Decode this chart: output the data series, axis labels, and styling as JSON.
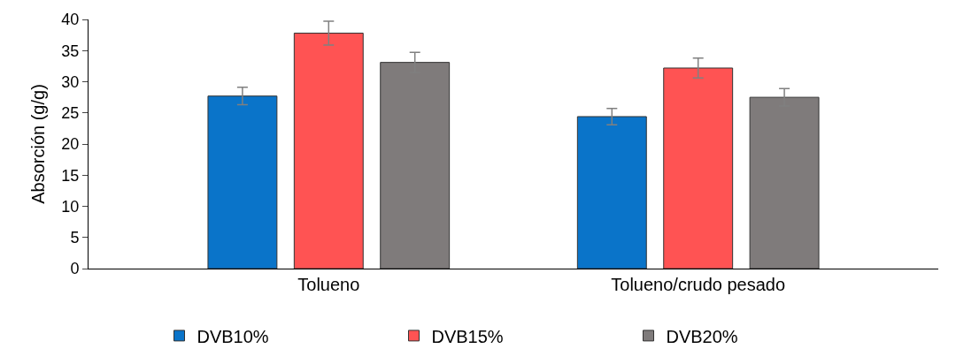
{
  "chart_data": {
    "type": "bar",
    "ylabel": "Absorción (g/g)",
    "categories": [
      "Tolueno",
      "Tolueno/crudo pesado"
    ],
    "series": [
      {
        "name": "DVB10%",
        "color": "#0a74c9",
        "values": [
          27.7,
          24.4
        ],
        "errors": [
          1.4,
          1.3
        ]
      },
      {
        "name": "DVB15%",
        "color": "#ff5353",
        "values": [
          37.8,
          32.2
        ],
        "errors": [
          1.9,
          1.6
        ]
      },
      {
        "name": "DVB20%",
        "color": "#7f7b7b",
        "values": [
          33.1,
          27.5
        ],
        "errors": [
          1.6,
          1.4
        ]
      }
    ],
    "ylim": [
      0,
      40
    ],
    "yticks": [
      0,
      5,
      10,
      15,
      20,
      25,
      30,
      35,
      40
    ],
    "grid": false,
    "legend": "bottom"
  }
}
